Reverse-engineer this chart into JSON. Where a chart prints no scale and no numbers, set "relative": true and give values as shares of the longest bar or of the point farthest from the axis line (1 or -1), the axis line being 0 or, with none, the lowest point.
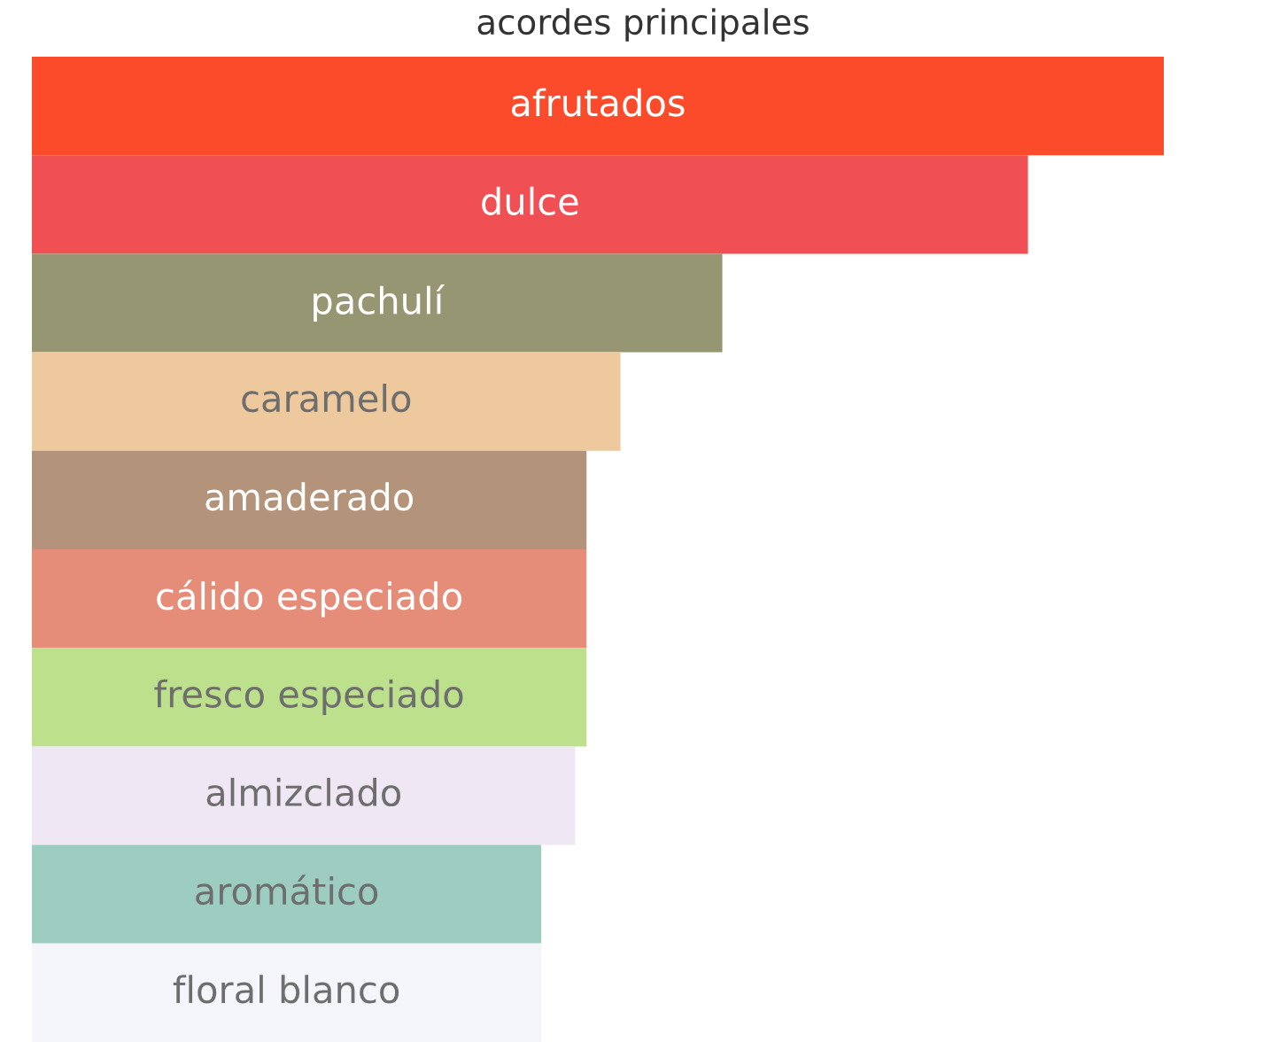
{
  "chart_data": {
    "type": "bar",
    "orientation": "horizontal",
    "relative": true,
    "title": "acordes principales",
    "categories": [
      "afrutados",
      "dulce",
      "pachulí",
      "caramelo",
      "amaderado",
      "cálido especiado",
      "fresco especiado",
      "almizclado",
      "aromático",
      "floral blanco"
    ],
    "values": [
      1,
      0.88,
      0.61,
      0.52,
      0.49,
      0.49,
      0.49,
      0.48,
      0.45,
      0.45
    ],
    "colors": [
      "#fc4b2a",
      "#f04f53",
      "#979673",
      "#edc99d",
      "#b39379",
      "#e58d79",
      "#bce08c",
      "#efe7f4",
      "#9ccdc0",
      "#f4f6fb"
    ],
    "legend": false
  }
}
